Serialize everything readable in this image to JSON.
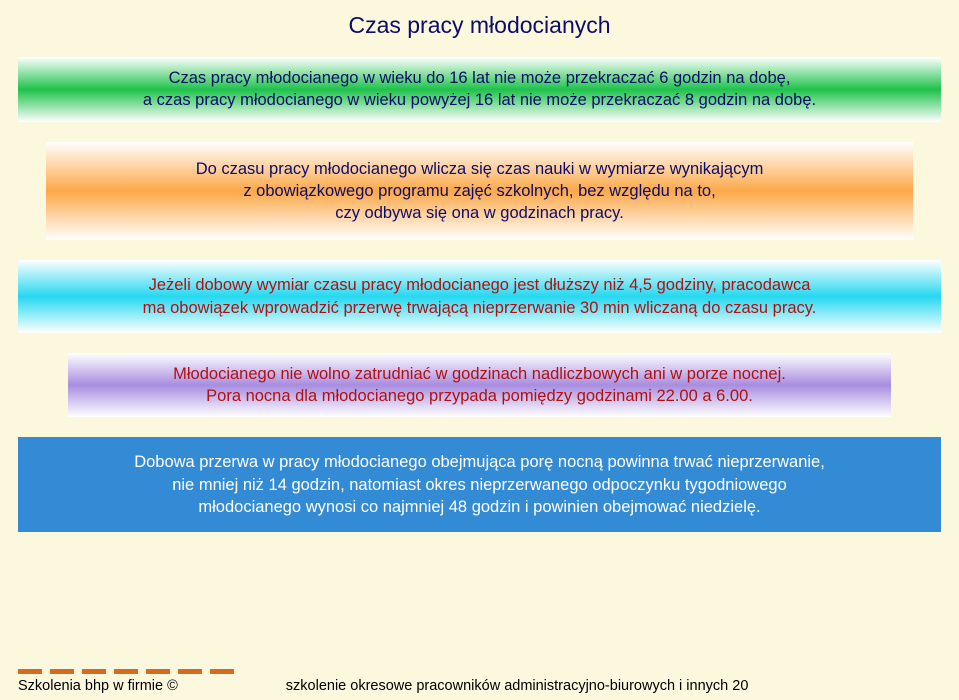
{
  "title": "Czas pracy młodocianych",
  "title_color": "#0c0c6b",
  "page_bg": "#fcf8dd",
  "boxes": {
    "b1": {
      "text": "Czas pracy młodocianego w wieku do 16 lat nie może przekraczać 6 godzin na dobę,\na czas pracy młodocianego w wieku powyżej 16 lat nie może przekraczać 8 godzin na dobę."
    },
    "b2": {
      "text": "Do czasu pracy młodocianego wlicza się czas nauki w wymiarze wynikającym\nz obowiązkowego programu zajęć szkolnych, bez względu na to,\nczy odbywa się ona w godzinach pracy."
    },
    "b3": {
      "text": "Jeżeli dobowy wymiar czasu pracy młodocianego jest dłuższy niż 4,5 godziny, pracodawca\nma obowiązek wprowadzić przerwę trwającą nieprzerwanie 30 min wliczaną do czasu pracy."
    },
    "b4": {
      "text": "Młodocianego nie wolno zatrudniać w godzinach nadliczbowych ani w porze nocnej.\nPora nocna dla młodocianego przypada pomiędzy godzinami 22.00 a 6.00."
    },
    "b5": {
      "text": "Dobowa przerwa w pracy młodocianego obejmująca porę nocną powinna trwać nieprzerwanie,\nnie mniej niż 14 godzin, natomiast okres nieprzerwanego odpoczynku tygodniowego\nmłodocianego wynosi co najmniej 48 godzin i powinien obejmować niedzielę."
    }
  },
  "footer": {
    "left": "Szkolenia bhp w firmie ©",
    "right": "szkolenie okresowe pracowników administracyjno-biurowych i innych 20"
  },
  "dash_color": "#d66a1d"
}
